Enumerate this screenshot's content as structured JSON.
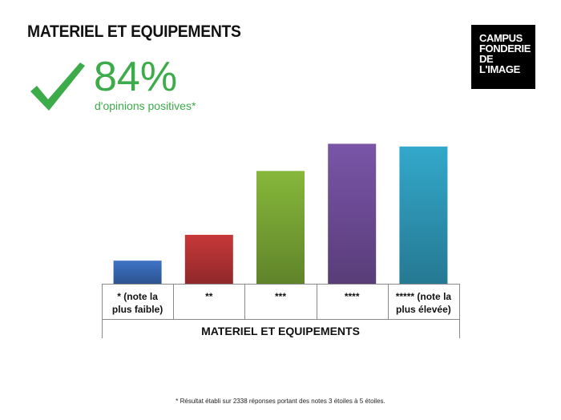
{
  "page": {
    "title": "MATERIEL ET EQUIPEMENTS",
    "logo_lines": [
      "CAMPUS",
      "FONDERIE",
      "DE",
      "L'IMAGE"
    ],
    "highlight_value": "84%",
    "highlight_label": "d'opinions positives*",
    "footnote": "* Résultat établi sur 2338 réponses portant des notes 3 étoiles à 5 étoiles.",
    "check_icon": "check-icon",
    "highlight_color": "#3cab4a"
  },
  "chart_data": {
    "type": "bar",
    "categories": [
      [
        "* (note la",
        "plus faible)"
      ],
      [
        "**"
      ],
      [
        "***"
      ],
      [
        "****"
      ],
      [
        "***** (note la",
        "plus élevée)"
      ]
    ],
    "values": [
      17,
      36,
      83,
      103,
      101
    ],
    "colors": [
      "#3e73c7",
      "#c8383a",
      "#86b83a",
      "#7a55a8",
      "#33a8cb"
    ],
    "xlabel": "MATERIEL ET EQUIPEMENTS",
    "ylabel": "",
    "ylim": [
      0,
      105
    ],
    "grid": false,
    "legend": "none"
  }
}
